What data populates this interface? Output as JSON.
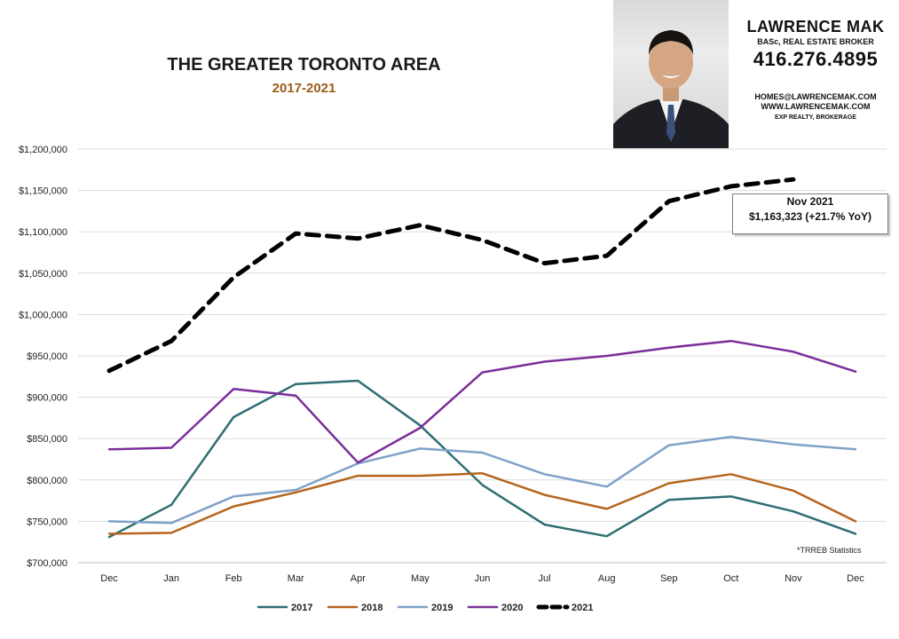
{
  "header": {
    "title": "THE GREATER TORONTO AREA",
    "subtitle": "2017-2021"
  },
  "agent": {
    "name": "LAWRENCE MAK",
    "role": "BASc, REAL ESTATE BROKER",
    "phone": "416.276.4895",
    "email": "HOMES@LAWRENCEMAK.COM",
    "website": "WWW.LAWRENCEMAK.COM",
    "brokerage": "EXP REALTY, BROKERAGE"
  },
  "callout": {
    "line1": "Nov 2021",
    "line2": "$1,163,323  (+21.7%  YoY)"
  },
  "footnote": "*TRREB Statistics",
  "colors": {
    "2017": "#2e6e72",
    "2018": "#b5651d",
    "2019": "#7fa1c9",
    "2020": "#7a2e9a",
    "2021": "#000000"
  },
  "chart_data": {
    "type": "line",
    "categories": [
      "Dec",
      "Jan",
      "Feb",
      "Mar",
      "Apr",
      "May",
      "Jun",
      "Jul",
      "Aug",
      "Sep",
      "Oct",
      "Nov",
      "Dec"
    ],
    "y_tick_labels": [
      "$700,000",
      "$750,000",
      "$800,000",
      "$850,000",
      "$900,000",
      "$950,000",
      "$1,000,000",
      "$1,050,000",
      "$1,100,000",
      "$1,150,000",
      "$1,200,000"
    ],
    "ylim": [
      700000,
      1200000
    ],
    "grid": true,
    "legend_position": "bottom",
    "series": [
      {
        "name": "2017",
        "color": "#2e6e72",
        "style": "solid",
        "values": [
          731000,
          770000,
          876000,
          916000,
          920000,
          866000,
          794000,
          746000,
          732000,
          776000,
          780000,
          762000,
          735000
        ]
      },
      {
        "name": "2018",
        "color": "#b5651d",
        "style": "solid",
        "values": [
          735000,
          736000,
          768000,
          785000,
          805000,
          805000,
          808000,
          782000,
          765000,
          796000,
          807000,
          787000,
          750000
        ]
      },
      {
        "name": "2019",
        "color": "#7fa1c9",
        "style": "solid",
        "values": [
          750000,
          748000,
          780000,
          788000,
          820000,
          838000,
          833000,
          807000,
          792000,
          842000,
          852000,
          843000,
          837000
        ]
      },
      {
        "name": "2020",
        "color": "#7a2e9a",
        "style": "solid",
        "values": [
          837000,
          839000,
          910000,
          902000,
          821000,
          863000,
          930000,
          943000,
          950000,
          960000,
          968000,
          955000,
          931000
        ]
      },
      {
        "name": "2021",
        "color": "#000000",
        "style": "dashed",
        "values": [
          932000,
          968000,
          1045000,
          1098000,
          1092000,
          1108000,
          1090000,
          1062000,
          1071000,
          1137000,
          1155000,
          1163323,
          null
        ]
      }
    ]
  }
}
